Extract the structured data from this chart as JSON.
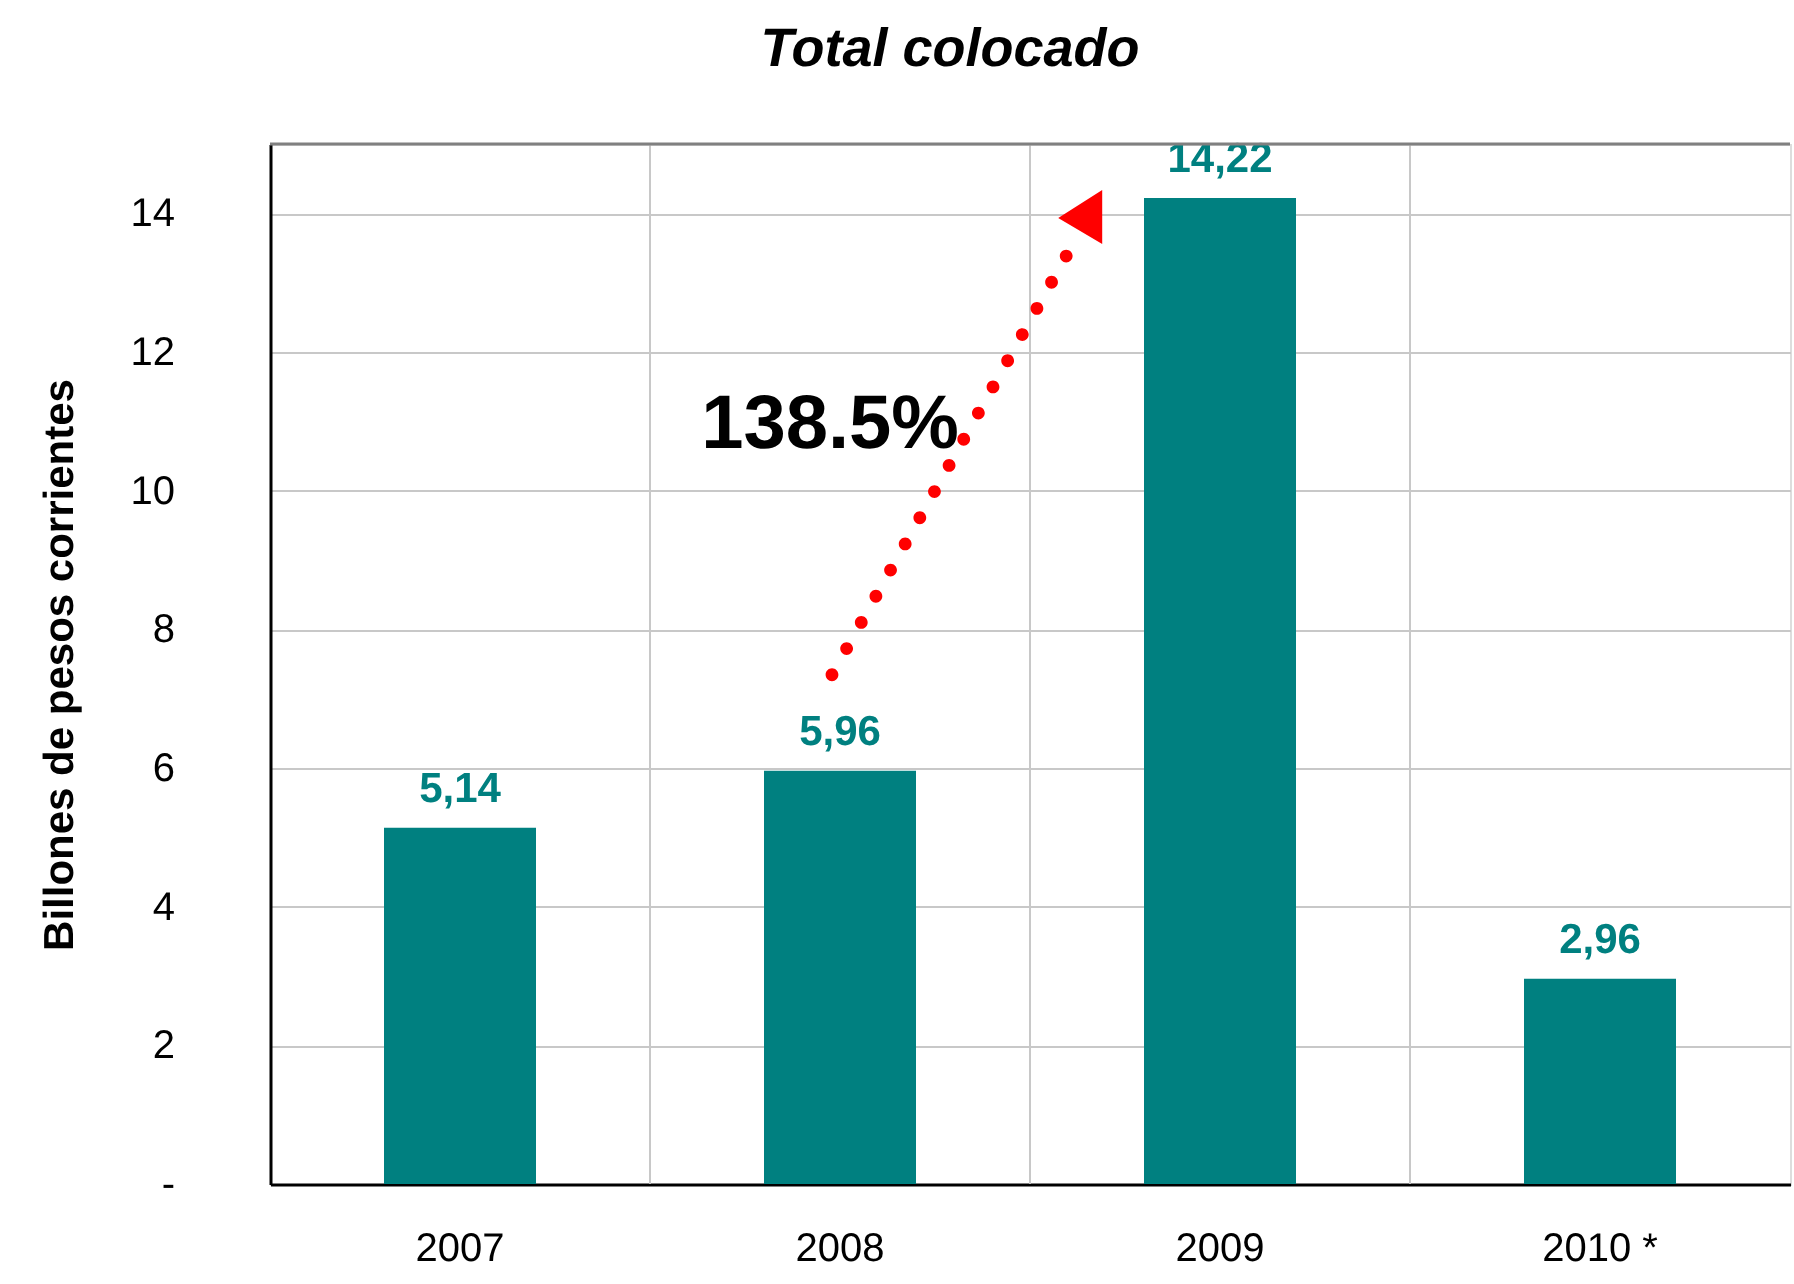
{
  "chart_data": {
    "type": "bar",
    "title": "Total colocado",
    "ylabel": "Billones de pesos corrientes",
    "categories": [
      "2007",
      "2008",
      "2009",
      "2010 *"
    ],
    "values": [
      5.14,
      5.96,
      14.22,
      2.96
    ],
    "color": "#008080",
    "value_labels": [
      "5,14",
      "5,96",
      "14,22",
      "2,96"
    ],
    "ylim": [
      0,
      15
    ],
    "yticks": [
      {
        "value": 0,
        "label": "-"
      },
      2,
      4,
      6,
      8,
      10,
      12,
      14
    ],
    "grid": true,
    "annotations": [
      "138.5%"
    ]
  }
}
